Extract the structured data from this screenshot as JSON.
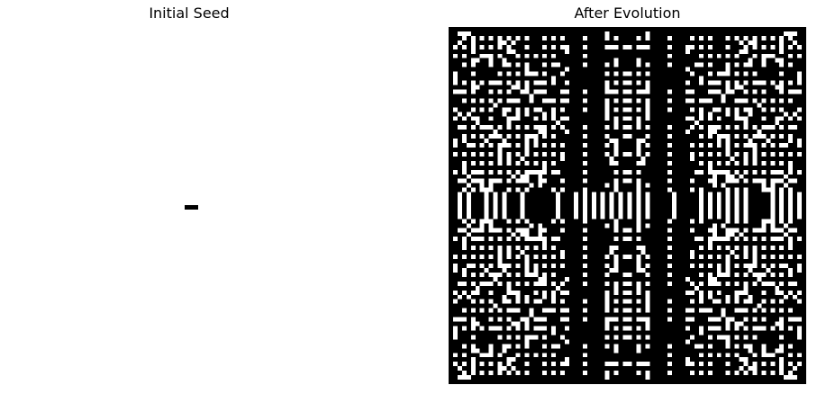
{
  "chart_data": [
    {
      "type": "heatmap",
      "title": "Initial Seed",
      "colormap": {
        "0": "#ffffff",
        "1": "#000000"
      },
      "grid_size": 80,
      "cells": "seed: three alive cells in a horizontal row at the center",
      "seed_row": 40,
      "seed_cols": [
        39,
        40,
        41
      ]
    },
    {
      "type": "heatmap",
      "title": "After Evolution",
      "colormap": {
        "0": "#ffffff",
        "1": "#000000"
      },
      "grid_size": 80,
      "pattern": "symmetric, dense black field with regular white dot lattice, a horizontal band through the center and two vertical black bands near the middle"
    }
  ]
}
